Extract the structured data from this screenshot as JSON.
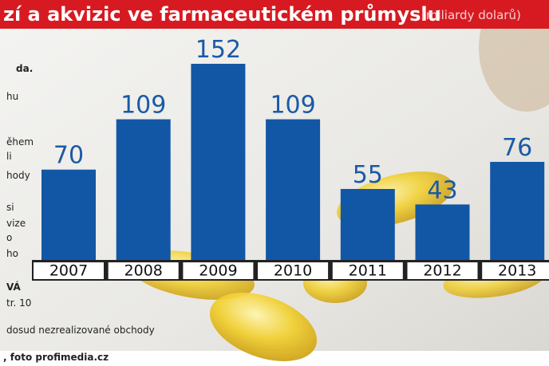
{
  "chart_data": {
    "type": "bar",
    "title": "zí a akvizic ve farmaceutickém průmyslu",
    "subtitle": "(miliardy dolarů)",
    "categories": [
      "2007",
      "2008",
      "2009",
      "2010",
      "2011",
      "2012",
      "2013"
    ],
    "values": [
      70,
      109,
      152,
      109,
      55,
      43,
      76
    ],
    "color": "#1257a6"
  },
  "side_text": [
    "da.",
    "hu",
    "ěhem",
    "li",
    "hody",
    "si",
    "vize",
    "o",
    "ho",
    "VÁ",
    "tr. 10",
    "dosud nezrealizované obchody",
    ", foto profimedia.cz"
  ]
}
